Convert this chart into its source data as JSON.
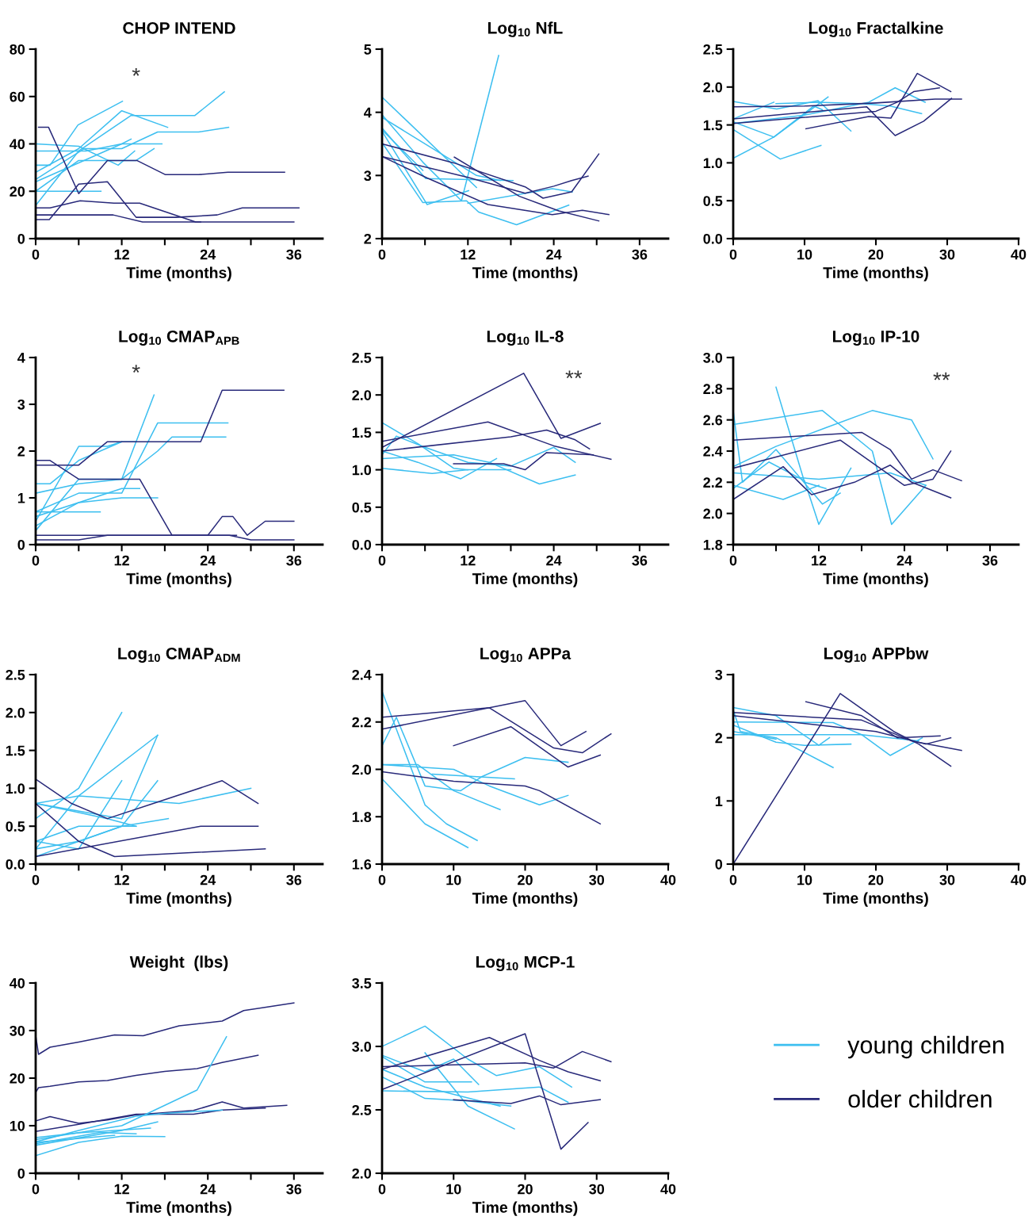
{
  "chart_data": [
    {
      "type": "line",
      "title": "CHOP INTEND",
      "xlabel": "Time (months)",
      "xlim": [
        0,
        40
      ],
      "xticks": [
        0,
        {
          "value": 6,
          "label": null
        },
        12,
        {
          "value": 18,
          "label": null
        },
        24,
        {
          "value": 30,
          "label": null
        },
        36
      ],
      "ylim": [
        0,
        80
      ],
      "yticks": [
        0,
        20,
        40,
        60,
        80
      ],
      "annotations": [
        "*"
      ],
      "series": [
        {
          "color": "#3dbff0",
          "x": [
            0,
            2,
            5.9,
            12.1
          ],
          "values": [
            31,
            31,
            48,
            58
          ]
        },
        {
          "color": "#3dbff0",
          "x": [
            0,
            6,
            12,
            18.4
          ],
          "values": [
            28,
            38,
            54,
            47
          ]
        },
        {
          "color": "#3dbff0",
          "x": [
            0,
            6,
            13.3,
            22.2,
            26.3
          ],
          "values": [
            14,
            37,
            52,
            52,
            62
          ]
        },
        {
          "color": "#3dbff0",
          "x": [
            0,
            6,
            11.5,
            13.8
          ],
          "values": [
            40,
            39,
            31,
            37
          ]
        },
        {
          "color": "#3dbff0",
          "x": [
            0,
            7,
            12,
            17.6
          ],
          "values": [
            37,
            37,
            40,
            40
          ]
        },
        {
          "color": "#3dbff0",
          "x": [
            0,
            6.8,
            12,
            17,
            22.7,
            26.9
          ],
          "values": [
            25,
            38,
            38,
            45,
            45,
            47
          ]
        },
        {
          "color": "#3dbff0",
          "x": [
            0,
            12,
            13.3
          ],
          "values": [
            24,
            40,
            42
          ]
        },
        {
          "color": "#3dbff0",
          "x": [
            0,
            9.1
          ],
          "values": [
            20,
            20
          ]
        },
        {
          "color": "#3dbff0",
          "x": [
            0,
            6,
            14,
            16.5
          ],
          "values": [
            20,
            33,
            33,
            38
          ]
        },
        {
          "color": "#28297a",
          "x": [
            0.4,
            1.8,
            6,
            10,
            14.1,
            18.1,
            22.7,
            26.8,
            34.7
          ],
          "values": [
            47,
            47,
            19,
            33,
            33,
            27,
            27,
            28,
            28
          ]
        },
        {
          "color": "#28297a",
          "x": [
            0,
            1.9,
            6,
            10,
            14,
            19.6,
            25.3,
            28.8,
            36.7
          ],
          "values": [
            8,
            8,
            23,
            24,
            9,
            9,
            10,
            13,
            13
          ]
        },
        {
          "color": "#28297a",
          "x": [
            0,
            2,
            6.2,
            10.9,
            14.5,
            22.3,
            36
          ],
          "values": [
            13,
            13,
            16,
            15,
            15,
            7,
            7
          ]
        },
        {
          "color": "#28297a",
          "x": [
            0,
            10.8,
            14.9,
            23
          ],
          "values": [
            10,
            10,
            7,
            7
          ]
        }
      ]
    },
    {
      "type": "line",
      "title": "Log$_{10}$ NfL",
      "xlabel": "Time (months)",
      "xlim": [
        0,
        40
      ],
      "xticks": [
        0,
        {
          "value": 6,
          "label": null
        },
        12,
        {
          "value": 18,
          "label": null
        },
        24,
        {
          "value": 30,
          "label": null
        },
        36
      ],
      "ylim": [
        2,
        5
      ],
      "yticks": [
        2,
        3,
        4,
        5
      ],
      "series": [
        {
          "color": "#3dbff0",
          "x": [
            0,
            13.2
          ],
          "values": [
            4.24,
            2.81
          ]
        },
        {
          "color": "#3dbff0",
          "x": [
            0,
            5.7,
            11.1,
            16.3
          ],
          "values": [
            3.96,
            3.21,
            2.6,
            4.9
          ]
        },
        {
          "color": "#3dbff0",
          "x": [
            0,
            13.2,
            16.5
          ],
          "values": [
            3.92,
            3.0,
            2.92
          ]
        },
        {
          "color": "#3dbff0",
          "x": [
            0,
            6.1,
            18.3
          ],
          "values": [
            3.75,
            2.95,
            2.92
          ]
        },
        {
          "color": "#3dbff0",
          "x": [
            0,
            5.7
          ],
          "values": [
            3.72,
            3.08
          ]
        },
        {
          "color": "#3dbff0",
          "x": [
            0,
            5.7,
            11.8,
            13.5,
            18.8,
            26.1
          ],
          "values": [
            3.52,
            2.57,
            2.6,
            2.42,
            2.22,
            2.53
          ]
        },
        {
          "color": "#3dbff0",
          "x": [
            0,
            6.3,
            12.1
          ],
          "values": [
            3.7,
            2.54,
            2.76
          ]
        },
        {
          "color": "#3dbff0",
          "x": [
            12,
            23.8,
            26.6
          ],
          "values": [
            2.56,
            2.79,
            2.74
          ]
        },
        {
          "color": "#28297a",
          "x": [
            0,
            10,
            20,
            22.5,
            26.5,
            30.3
          ],
          "values": [
            3.5,
            3.2,
            2.82,
            2.64,
            2.74,
            3.34
          ]
        },
        {
          "color": "#28297a",
          "x": [
            0,
            12,
            20,
            24,
            26.5,
            28.8
          ],
          "values": [
            3.3,
            2.97,
            2.72,
            2.83,
            2.92,
            2.99
          ]
        },
        {
          "color": "#28297a",
          "x": [
            0,
            6.3,
            14.8,
            23.8,
            28,
            31.7
          ],
          "values": [
            3.3,
            2.96,
            2.54,
            2.38,
            2.45,
            2.38
          ]
        },
        {
          "color": "#28297a",
          "x": [
            10.1,
            19.2,
            24.7,
            30.3
          ],
          "values": [
            3.29,
            2.67,
            2.44,
            2.28
          ]
        }
      ]
    },
    {
      "type": "line",
      "title": "Log$_{10}$ Fractalkine",
      "xlabel": "Time (months)",
      "xlim": [
        0,
        40
      ],
      "xticks": [
        0,
        10,
        20,
        30,
        40
      ],
      "ylim": [
        0.0,
        2.5
      ],
      "yticks": [
        {
          "value": 0,
          "label": "0.0"
        },
        0.5,
        {
          "value": 1,
          "label": "1.0"
        },
        1.5,
        {
          "value": 2,
          "label": "2.0"
        },
        2.5
      ],
      "series": [
        {
          "color": "#3dbff0",
          "x": [
            0,
            6.1,
            11.9,
            16.5
          ],
          "values": [
            1.81,
            1.71,
            1.82,
            1.42
          ]
        },
        {
          "color": "#3dbff0",
          "x": [
            0,
            5.7
          ],
          "values": [
            1.58,
            1.8
          ]
        },
        {
          "color": "#3dbff0",
          "x": [
            0,
            5.7,
            13.3
          ],
          "values": [
            1.54,
            1.34,
            1.87
          ]
        },
        {
          "color": "#3dbff0",
          "x": [
            0,
            5.7,
            11.3,
            12.5
          ],
          "values": [
            1.06,
            1.34,
            1.75,
            1.7
          ]
        },
        {
          "color": "#3dbff0",
          "x": [
            0,
            6.6,
            12.3
          ],
          "values": [
            1.44,
            1.05,
            1.23
          ]
        },
        {
          "color": "#3dbff0",
          "x": [
            0,
            10,
            19,
            22.7,
            26.9
          ],
          "values": [
            1.52,
            1.63,
            1.8,
            1.99,
            1.8
          ]
        },
        {
          "color": "#3dbff0",
          "x": [
            6,
            12,
            18,
            22,
            26.4
          ],
          "values": [
            1.78,
            1.8,
            1.78,
            1.75,
            1.65
          ]
        },
        {
          "color": "#28297a",
          "x": [
            0,
            10,
            20,
            28.3,
            32
          ],
          "values": [
            1.74,
            1.75,
            1.79,
            1.84,
            1.84
          ]
        },
        {
          "color": "#28297a",
          "x": [
            0,
            18.7,
            22.7,
            26.7,
            30.6
          ],
          "values": [
            1.58,
            1.74,
            1.36,
            1.55,
            1.85
          ]
        },
        {
          "color": "#28297a",
          "x": [
            0,
            20,
            23,
            25.3,
            28.9
          ],
          "values": [
            1.52,
            1.68,
            1.8,
            1.94,
            1.99
          ]
        },
        {
          "color": "#28297a",
          "x": [
            10.2,
            19,
            22.1,
            25.8,
            30.5
          ],
          "values": [
            1.45,
            1.61,
            1.59,
            2.18,
            1.94
          ]
        }
      ]
    },
    {
      "type": "line",
      "title": "Log$_{10}$ CMAP$_{APB}$",
      "xlabel": "Time (months)",
      "xlim": [
        0,
        40
      ],
      "xticks": [
        0,
        {
          "value": 6,
          "label": null
        },
        12,
        {
          "value": 18,
          "label": null
        },
        24,
        {
          "value": 30,
          "label": null
        },
        36
      ],
      "ylim": [
        0,
        4
      ],
      "yticks": [
        0,
        1,
        2,
        3,
        4
      ],
      "annotations": [
        "*"
      ],
      "series": [
        {
          "color": "#3dbff0",
          "x": [
            0,
            6,
            10,
            12
          ],
          "values": [
            0.5,
            2.1,
            2.1,
            2.2
          ]
        },
        {
          "color": "#3dbff0",
          "x": [
            0,
            6,
            12,
            16.5
          ],
          "values": [
            0.3,
            1.4,
            1.4,
            3.2
          ]
        },
        {
          "color": "#3dbff0",
          "x": [
            0,
            6,
            12,
            17,
            26.8
          ],
          "values": [
            0.7,
            1.1,
            1.1,
            2.6,
            2.6
          ]
        },
        {
          "color": "#3dbff0",
          "x": [
            0,
            6,
            12,
            17,
            19,
            26.5
          ],
          "values": [
            1.1,
            1.3,
            1.4,
            2.0,
            2.3,
            2.3
          ]
        },
        {
          "color": "#3dbff0",
          "x": [
            0,
            2,
            6,
            12,
            14
          ],
          "values": [
            1.3,
            1.3,
            1.8,
            2.2,
            2.2
          ]
        },
        {
          "color": "#3dbff0",
          "x": [
            0,
            9
          ],
          "values": [
            0.7,
            0.7
          ]
        },
        {
          "color": "#3dbff0",
          "x": [
            0,
            6,
            12,
            17
          ],
          "values": [
            0.4,
            0.9,
            1.0,
            1.0
          ]
        },
        {
          "color": "#3dbff0",
          "x": [
            0,
            12,
            14.5
          ],
          "values": [
            0.6,
            1.2,
            1.2
          ]
        },
        {
          "color": "#28297a",
          "x": [
            0,
            6,
            10,
            23,
            26,
            34.6
          ],
          "values": [
            1.7,
            1.7,
            2.2,
            2.2,
            3.3,
            3.3
          ]
        },
        {
          "color": "#28297a",
          "x": [
            0,
            2,
            6,
            14.5,
            19,
            27,
            30,
            36
          ],
          "values": [
            1.8,
            1.8,
            1.4,
            1.4,
            0.2,
            0.2,
            0.1,
            0.1
          ]
        },
        {
          "color": "#28297a",
          "x": [
            0,
            24,
            26,
            27.5,
            29.5,
            32,
            36
          ],
          "values": [
            0.2,
            0.2,
            0.6,
            0.6,
            0.2,
            0.5,
            0.5
          ]
        },
        {
          "color": "#28297a",
          "x": [
            0,
            6,
            10,
            28
          ],
          "values": [
            0.1,
            0.1,
            0.2,
            0.2
          ]
        }
      ]
    },
    {
      "type": "line",
      "title": "Log$_{10}$ IL-8",
      "xlabel": "Time (months)",
      "xlim": [
        0,
        40
      ],
      "xticks": [
        0,
        {
          "value": 6,
          "label": null
        },
        12,
        {
          "value": 18,
          "label": null
        },
        24,
        {
          "value": 30,
          "label": null
        },
        36
      ],
      "ylim": [
        0.0,
        2.5
      ],
      "yticks": [
        {
          "value": 0,
          "label": "0.0"
        },
        0.5,
        {
          "value": 1,
          "label": "1.0"
        },
        1.5,
        {
          "value": 2,
          "label": "2.0"
        },
        2.5
      ],
      "annotations": [
        "**"
      ],
      "series": [
        {
          "color": "#3dbff0",
          "x": [
            0,
            5,
            10,
            12
          ],
          "values": [
            1.63,
            1.35,
            1.02,
            1.0
          ]
        },
        {
          "color": "#3dbff0",
          "x": [
            0,
            2,
            6,
            12,
            18,
            24,
            27
          ],
          "values": [
            1.2,
            1.45,
            1.3,
            1.1,
            1.05,
            1.3,
            1.1
          ]
        },
        {
          "color": "#3dbff0",
          "x": [
            0,
            7,
            12,
            18
          ],
          "values": [
            1.02,
            0.95,
            1.0,
            1.0
          ]
        },
        {
          "color": "#3dbff0",
          "x": [
            0,
            10,
            15,
            22,
            27
          ],
          "values": [
            1.15,
            1.2,
            1.1,
            0.81,
            0.93
          ]
        },
        {
          "color": "#3dbff0",
          "x": [
            0,
            5,
            11,
            16
          ],
          "values": [
            1.25,
            1.1,
            0.88,
            1.15
          ]
        },
        {
          "color": "#28297a",
          "x": [
            0,
            19.8,
            25,
            30.5
          ],
          "values": [
            1.3,
            2.29,
            1.42,
            1.62
          ]
        },
        {
          "color": "#28297a",
          "x": [
            0,
            14.8,
            24,
            32
          ],
          "values": [
            1.38,
            1.64,
            1.32,
            1.14
          ]
        },
        {
          "color": "#28297a",
          "x": [
            0,
            18,
            23,
            27,
            29
          ],
          "values": [
            1.25,
            1.44,
            1.53,
            1.4,
            1.28
          ]
        },
        {
          "color": "#28297a",
          "x": [
            10,
            17,
            20,
            23,
            29.5
          ],
          "values": [
            1.08,
            1.08,
            1.0,
            1.23,
            1.2
          ]
        }
      ]
    },
    {
      "type": "line",
      "title": "Log$_{10}$ IP-10",
      "xlabel": "Time (months)",
      "xlim": [
        0,
        40
      ],
      "xticks": [
        0,
        {
          "value": 6,
          "label": null
        },
        12,
        {
          "value": 18,
          "label": null
        },
        24,
        {
          "value": 30,
          "label": null
        },
        36
      ],
      "ylim": [
        1.8,
        3.0
      ],
      "yticks": [
        1.8,
        {
          "value": 2,
          "label": "2.0"
        },
        2.2,
        2.4,
        2.6,
        2.8,
        {
          "value": 3,
          "label": "3.0"
        }
      ],
      "annotations": [
        "**"
      ],
      "series": [
        {
          "color": "#3dbff0",
          "x": [
            0,
            1.3,
            6,
            12.5,
            15
          ],
          "values": [
            2.66,
            2.2,
            2.41,
            2.06,
            2.13
          ]
        },
        {
          "color": "#3dbff0",
          "x": [
            0,
            12.5,
            19.5,
            22.2,
            27
          ],
          "values": [
            2.57,
            2.66,
            2.4,
            1.93,
            2.18
          ]
        },
        {
          "color": "#3dbff0",
          "x": [
            0,
            6,
            13,
            19.5,
            25,
            28
          ],
          "values": [
            2.3,
            2.43,
            2.55,
            2.66,
            2.6,
            2.35
          ]
        },
        {
          "color": "#3dbff0",
          "x": [
            0,
            5,
            10,
            12,
            16.5
          ],
          "values": [
            2.16,
            2.33,
            2.21,
            1.93,
            2.29
          ]
        },
        {
          "color": "#3dbff0",
          "x": [
            0,
            7,
            12
          ],
          "values": [
            2.18,
            2.09,
            2.18
          ]
        },
        {
          "color": "#3dbff0",
          "x": [
            6,
            10,
            13
          ],
          "values": [
            2.81,
            2.2,
            2.16
          ]
        },
        {
          "color": "#3dbff0",
          "x": [
            0,
            12,
            22,
            27
          ],
          "values": [
            2.26,
            2.22,
            2.26,
            2.18
          ]
        },
        {
          "color": "#28297a",
          "x": [
            0,
            18,
            22,
            25,
            28,
            32
          ],
          "values": [
            2.47,
            2.52,
            2.41,
            2.22,
            2.28,
            2.21
          ]
        },
        {
          "color": "#28297a",
          "x": [
            0,
            15,
            24,
            28,
            30.5
          ],
          "values": [
            2.29,
            2.47,
            2.18,
            2.22,
            2.4
          ]
        },
        {
          "color": "#28297a",
          "x": [
            0,
            7,
            11,
            17,
            22,
            25,
            30.5
          ],
          "values": [
            2.09,
            2.3,
            2.12,
            2.2,
            2.31,
            2.2,
            2.1
          ]
        }
      ]
    },
    {
      "type": "line",
      "title": "Log$_{10}$ CMAP$_{ADM}$",
      "xlabel": "Time (months)",
      "xlim": [
        0,
        40
      ],
      "xticks": [
        0,
        {
          "value": 6,
          "label": null
        },
        12,
        {
          "value": 18,
          "label": null
        },
        24,
        {
          "value": 30,
          "label": null
        },
        36
      ],
      "ylim": [
        0.0,
        2.5
      ],
      "yticks": [
        {
          "value": 0,
          "label": "0.0"
        },
        0.5,
        {
          "value": 1,
          "label": "1.0"
        },
        1.5,
        {
          "value": 2,
          "label": "2.0"
        },
        2.5
      ],
      "series": [
        {
          "color": "#3dbff0",
          "x": [
            0,
            6,
            12
          ],
          "values": [
            0.6,
            1.0,
            2.0
          ]
        },
        {
          "color": "#3dbff0",
          "x": [
            0,
            6,
            12
          ],
          "values": [
            0.3,
            0.2,
            1.1
          ]
        },
        {
          "color": "#3dbff0",
          "x": [
            0,
            12,
            17
          ],
          "values": [
            0.8,
            0.6,
            1.7
          ]
        },
        {
          "color": "#3dbff0",
          "x": [
            0,
            6,
            17
          ],
          "values": [
            0.2,
            0.9,
            1.7
          ]
        },
        {
          "color": "#3dbff0",
          "x": [
            0,
            6,
            20,
            30
          ],
          "values": [
            0.8,
            0.9,
            0.8,
            1.0
          ]
        },
        {
          "color": "#3dbff0",
          "x": [
            0,
            6,
            12,
            18.5
          ],
          "values": [
            0.3,
            0.5,
            0.5,
            0.6
          ]
        },
        {
          "color": "#3dbff0",
          "x": [
            0,
            5,
            10,
            14
          ],
          "values": [
            0.8,
            0.7,
            0.6,
            0.5
          ]
        },
        {
          "color": "#3dbff0",
          "x": [
            0,
            6,
            12,
            14
          ],
          "values": [
            0.2,
            0.3,
            0.5,
            0.5
          ]
        },
        {
          "color": "#3dbff0",
          "x": [
            0,
            12,
            17
          ],
          "values": [
            0.1,
            0.5,
            1.1
          ]
        },
        {
          "color": "#28297a",
          "x": [
            0,
            5,
            10,
            26,
            31
          ],
          "values": [
            1.12,
            0.8,
            0.6,
            1.1,
            0.8
          ]
        },
        {
          "color": "#28297a",
          "x": [
            0,
            23,
            31
          ],
          "values": [
            0.1,
            0.5,
            0.5
          ]
        },
        {
          "color": "#28297a",
          "x": [
            0,
            6,
            11,
            32
          ],
          "values": [
            0.8,
            0.3,
            0.1,
            0.2
          ]
        }
      ]
    },
    {
      "type": "line",
      "title": "Log$_{10}$ APPa",
      "xlabel": "Time (months)",
      "xlim": [
        0,
        40
      ],
      "xticks": [
        0,
        10,
        20,
        30,
        40
      ],
      "ylim": [
        1.6,
        2.4
      ],
      "yticks": [
        1.6,
        1.8,
        {
          "value": 2,
          "label": "2.0"
        },
        2.2,
        2.4
      ],
      "series": [
        {
          "color": "#3dbff0",
          "x": [
            0,
            6,
            9,
            13.3
          ],
          "values": [
            2.33,
            1.85,
            1.77,
            1.7
          ]
        },
        {
          "color": "#3dbff0",
          "x": [
            0,
            6,
            12
          ],
          "values": [
            1.96,
            1.77,
            1.67
          ]
        },
        {
          "color": "#3dbff0",
          "x": [
            0,
            2,
            6,
            11,
            14,
            20,
            26
          ],
          "values": [
            2.1,
            2.22,
            1.93,
            1.91,
            1.97,
            2.05,
            2.03
          ]
        },
        {
          "color": "#3dbff0",
          "x": [
            0,
            10,
            15,
            22,
            26
          ],
          "values": [
            2.02,
            2.0,
            1.93,
            1.85,
            1.89
          ]
        },
        {
          "color": "#3dbff0",
          "x": [
            0,
            5,
            10,
            16.5
          ],
          "values": [
            2.02,
            2.02,
            1.91,
            1.83
          ]
        },
        {
          "color": "#3dbff0",
          "x": [
            7,
            18.5
          ],
          "values": [
            1.98,
            1.96
          ]
        },
        {
          "color": "#28297a",
          "x": [
            0,
            15,
            20,
            25,
            28.5
          ],
          "values": [
            2.22,
            2.26,
            2.29,
            2.1,
            2.16
          ]
        },
        {
          "color": "#28297a",
          "x": [
            0,
            15,
            24,
            28,
            32
          ],
          "values": [
            2.17,
            2.26,
            2.09,
            2.07,
            2.15
          ]
        },
        {
          "color": "#28297a",
          "x": [
            10,
            18,
            26,
            30.5
          ],
          "values": [
            2.1,
            2.18,
            2.01,
            2.06
          ]
        },
        {
          "color": "#28297a",
          "x": [
            0,
            10,
            20,
            22,
            30.5
          ],
          "values": [
            1.99,
            1.95,
            1.93,
            1.91,
            1.77
          ]
        }
      ]
    },
    {
      "type": "line",
      "title": "Log$_{10}$ APPbw",
      "xlabel": "Time (months)",
      "xlim": [
        0,
        40
      ],
      "xticks": [
        0,
        10,
        20,
        30,
        40
      ],
      "ylim": [
        0,
        3
      ],
      "yticks": [
        0,
        1,
        2,
        3
      ],
      "series": [
        {
          "color": "#3dbff0",
          "x": [
            0,
            6,
            12,
            13.5
          ],
          "values": [
            2.48,
            2.35,
            1.88,
            2.0
          ]
        },
        {
          "color": "#3dbff0",
          "x": [
            0,
            1,
            6,
            14
          ],
          "values": [
            2.44,
            2.1,
            2.0,
            1.53
          ]
        },
        {
          "color": "#3dbff0",
          "x": [
            0,
            14,
            18,
            22,
            26.5
          ],
          "values": [
            2.25,
            2.24,
            2.05,
            1.72,
            2.0
          ]
        },
        {
          "color": "#3dbff0",
          "x": [
            0,
            6,
            10,
            16.5
          ],
          "values": [
            2.2,
            1.93,
            1.88,
            1.9
          ]
        },
        {
          "color": "#3dbff0",
          "x": [
            0,
            18,
            26
          ],
          "values": [
            2.05,
            2.05,
            1.95
          ]
        },
        {
          "color": "#3dbff0",
          "x": [
            0,
            6
          ],
          "values": [
            2.1,
            1.98
          ]
        },
        {
          "color": "#28297a",
          "x": [
            0,
            15,
            22.5,
            26,
            30.5
          ],
          "values": [
            0,
            2.7,
            2.1,
            1.9,
            1.55
          ]
        },
        {
          "color": "#28297a",
          "x": [
            10.2,
            18,
            23,
            29
          ],
          "values": [
            2.57,
            2.35,
            2.0,
            2.03
          ]
        },
        {
          "color": "#28297a",
          "x": [
            0,
            18,
            25,
            32
          ],
          "values": [
            2.4,
            2.28,
            1.95,
            1.8
          ]
        },
        {
          "color": "#28297a",
          "x": [
            0,
            20,
            27,
            30.5
          ],
          "values": [
            2.35,
            2.1,
            1.9,
            2.0
          ]
        }
      ]
    },
    {
      "type": "line",
      "title": "Weight  (lbs)",
      "xlabel": "Time (months)",
      "xlim": [
        0,
        40
      ],
      "xticks": [
        0,
        {
          "value": 6,
          "label": null
        },
        12,
        {
          "value": 18,
          "label": null
        },
        24,
        {
          "value": 30,
          "label": null
        },
        36
      ],
      "ylim": [
        0,
        40
      ],
      "yticks": [
        0,
        10,
        20,
        30,
        40
      ],
      "series": [
        {
          "color": "#28297a",
          "x": [
            0,
            0.4,
            2,
            6,
            11,
            15,
            20,
            26,
            29,
            36
          ],
          "values": [
            29,
            25,
            26.5,
            27.6,
            29.1,
            28.9,
            31,
            32,
            34.2,
            35.8
          ]
        },
        {
          "color": "#28297a",
          "x": [
            0,
            0.4,
            2,
            6,
            10,
            14,
            18,
            22.5,
            26,
            31
          ],
          "values": [
            17,
            18,
            18.3,
            19.2,
            19.5,
            20.6,
            21.4,
            22,
            23.3,
            24.8
          ]
        },
        {
          "color": "#28297a",
          "x": [
            0,
            2,
            6,
            10,
            14,
            22,
            26,
            29,
            35
          ],
          "values": [
            11,
            11.9,
            10.5,
            11.2,
            12.3,
            13.2,
            15,
            13.7,
            14.3
          ]
        },
        {
          "color": "#28297a",
          "x": [
            0,
            6,
            14,
            22,
            26,
            32
          ],
          "values": [
            8.8,
            10.3,
            12.4,
            12.4,
            13.3,
            13.7
          ]
        },
        {
          "color": "#3dbff0",
          "x": [
            0,
            12,
            22.5,
            26.6
          ],
          "values": [
            7.1,
            10,
            17.5,
            28.7
          ]
        },
        {
          "color": "#3dbff0",
          "x": [
            0,
            6,
            14,
            18,
            26
          ],
          "values": [
            6.6,
            9,
            12,
            12.6,
            13.3
          ]
        },
        {
          "color": "#3dbff0",
          "x": [
            0,
            6,
            12,
            18
          ],
          "values": [
            3.7,
            6.5,
            7.8,
            7.7
          ]
        },
        {
          "color": "#3dbff0",
          "x": [
            0,
            9,
            14
          ],
          "values": [
            6.2,
            8.6,
            8.3
          ]
        },
        {
          "color": "#3dbff0",
          "x": [
            0,
            6,
            16
          ],
          "values": [
            7.5,
            8.5,
            9.5
          ]
        },
        {
          "color": "#3dbff0",
          "x": [
            0,
            12,
            17
          ],
          "values": [
            5.9,
            9,
            10.8
          ]
        },
        {
          "color": "#3dbff0",
          "x": [
            0,
            11
          ],
          "values": [
            6.5,
            8
          ]
        }
      ]
    },
    {
      "type": "line",
      "title": "Log$_{10}$ MCP-1",
      "xlabel": "Time (months)",
      "xlim": [
        0,
        40
      ],
      "xticks": [
        0,
        10,
        20,
        30,
        40
      ],
      "ylim": [
        2.0,
        3.5
      ],
      "yticks": [
        {
          "value": 2,
          "label": "2.0"
        },
        2.5,
        {
          "value": 3,
          "label": "3.0"
        },
        3.5
      ],
      "legend": "right",
      "series": [
        {
          "name": "young children",
          "color": "#3dbff0",
          "x": [
            0,
            6,
            12,
            16,
            22,
            26.5
          ],
          "values": [
            3.0,
            3.16,
            2.9,
            2.77,
            2.84,
            2.68
          ]
        },
        {
          "color": "#3dbff0",
          "x": [
            0,
            6,
            10,
            13.5
          ],
          "values": [
            2.93,
            2.8,
            2.9,
            2.7
          ]
        },
        {
          "color": "#3dbff0",
          "x": [
            0,
            6,
            12.5
          ],
          "values": [
            2.92,
            2.72,
            2.72
          ]
        },
        {
          "color": "#3dbff0",
          "x": [
            0,
            6,
            12,
            18
          ],
          "values": [
            2.76,
            2.59,
            2.57,
            2.53
          ]
        },
        {
          "color": "#3dbff0",
          "x": [
            0,
            12,
            22,
            26
          ],
          "values": [
            2.65,
            2.64,
            2.68,
            2.56
          ]
        },
        {
          "color": "#3dbff0",
          "x": [
            0,
            6,
            16.5
          ],
          "values": [
            2.82,
            2.68,
            2.53
          ]
        },
        {
          "color": "#3dbff0",
          "x": [
            6,
            12,
            18.5
          ],
          "values": [
            2.95,
            2.53,
            2.35
          ]
        },
        {
          "name": "older children",
          "color": "#28297a",
          "x": [
            0,
            15,
            22,
            26,
            30.5
          ],
          "values": [
            2.82,
            3.07,
            2.89,
            2.8,
            2.73
          ]
        },
        {
          "color": "#28297a",
          "x": [
            0,
            20,
            25,
            28.8
          ],
          "values": [
            2.66,
            3.1,
            2.19,
            2.4
          ]
        },
        {
          "color": "#28297a",
          "x": [
            0,
            20,
            24,
            28,
            32
          ],
          "values": [
            2.84,
            2.87,
            2.83,
            2.96,
            2.88
          ]
        },
        {
          "color": "#28297a",
          "x": [
            10,
            18,
            22,
            25,
            30.5
          ],
          "values": [
            2.58,
            2.55,
            2.61,
            2.54,
            2.58
          ]
        }
      ]
    }
  ]
}
